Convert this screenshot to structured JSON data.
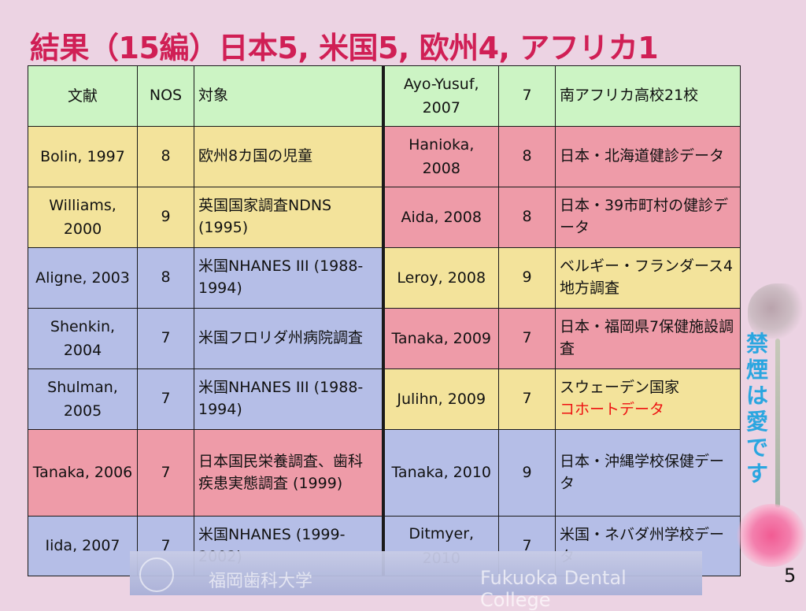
{
  "slide": {
    "title": "結果（15編）日本5, 米国5, 欧州4, アフリカ1",
    "page_number": "5",
    "side_slogan": "禁煙は愛です"
  },
  "table": {
    "header": {
      "ref": "文献",
      "nos": "NOS",
      "target": "対象",
      "r_ref": "Ayo-Yusuf, 2007",
      "r_nos": "7",
      "r_target": "南アフリカ高校21校"
    },
    "rows": [
      {
        "ref": "Bolin, 1997",
        "nos": "8",
        "target": "欧州8カ国の児童",
        "r_ref": "Hanioka, 2008",
        "r_nos": "8",
        "r_target": "日本・北海道健診データ"
      },
      {
        "ref": "Williams, 2000",
        "nos": "9",
        "target": "英国国家調査NDNS (1995)",
        "r_ref": "Aida, 2008",
        "r_nos": "8",
        "r_target": "日本・39市町村の健診データ"
      },
      {
        "ref": "Aligne, 2003",
        "nos": "8",
        "target": "米国NHANES III (1988-1994)",
        "r_ref": "Leroy, 2008",
        "r_nos": "9",
        "r_target": "ベルギー・フランダース4地方調査"
      },
      {
        "ref": "Shenkin, 2004",
        "nos": "7",
        "target": "米国フロリダ州病院調査",
        "r_ref": "Tanaka, 2009",
        "r_nos": "7",
        "r_target": "日本・福岡県7保健施設調査"
      },
      {
        "ref": "Shulman, 2005",
        "nos": "7",
        "target": "米国NHANES III (1988-1994)",
        "r_ref": "Julihn, 2009",
        "r_nos": "7",
        "r_target": "スウェーデン国家",
        "r_target_highlight": "コホートデータ"
      },
      {
        "ref": "Tanaka, 2006",
        "nos": "7",
        "target": "日本国民栄養調査、歯科疾患実態調査 (1999)",
        "r_ref": "Tanaka, 2010",
        "r_nos": "9",
        "r_target": "日本・沖縄学校保健データ"
      },
      {
        "ref": "Iida, 2007",
        "nos": "7",
        "target": "米国NHANES (1999-2002)",
        "r_ref": "Ditmyer, 2010",
        "r_nos": "7",
        "r_target": "米国・ネバダ州学校データ"
      }
    ]
  },
  "footer": {
    "jp": "福岡歯科大学",
    "en": "Fukuoka Dental College"
  },
  "colors": {
    "title": "#d01f55",
    "header_bg": "#ccf4c4",
    "yellow_bg": "#f3e39b",
    "blue_bg": "#b5bee7",
    "pink_bg": "#ee9ba8",
    "highlight_text": "#ee1111",
    "slogan": "#2aa6e0"
  }
}
